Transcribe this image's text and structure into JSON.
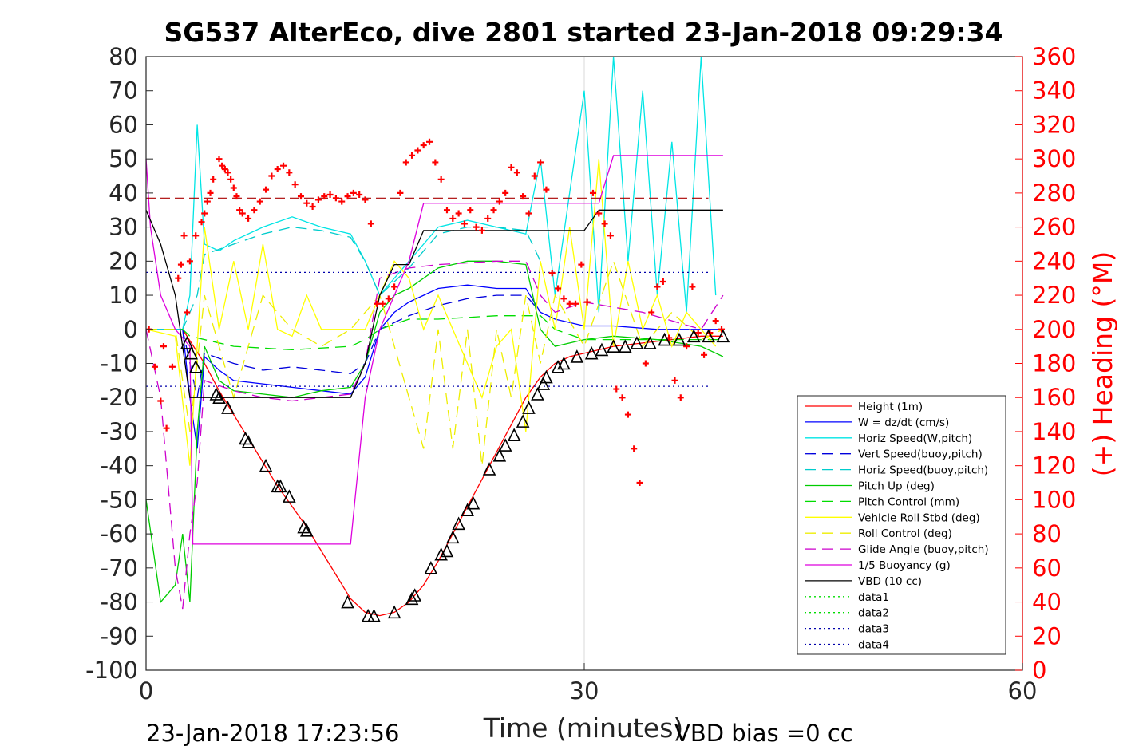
{
  "chart_data": {
    "type": "line",
    "title": "SG537 AlterEco, dive 2801 started 23-Jan-2018 09:29:34",
    "xlabel": "Time (minutes)",
    "ylabel_right": "(+) Heading (°M)",
    "xlim": [
      0,
      60
    ],
    "ylim": [
      -100,
      80
    ],
    "ylim_right": [
      0,
      360
    ],
    "x_ticks": [
      "0",
      "30",
      "60"
    ],
    "y_ticks": [
      "80",
      "70",
      "60",
      "50",
      "40",
      "30",
      "20",
      "10",
      "0",
      "-10",
      "-20",
      "-30",
      "-40",
      "-50",
      "-60",
      "-70",
      "-80",
      "-90",
      "-100"
    ],
    "y_right_ticks": [
      "360",
      "340",
      "320",
      "300",
      "280",
      "260",
      "240",
      "220",
      "200",
      "180",
      "160",
      "140",
      "120",
      "100",
      "80",
      "60",
      "40",
      "20",
      "0"
    ],
    "footer_left": "23-Jan-2018 17:23:56",
    "footer_right": "VBD bias =0 cc",
    "grid": "x-only",
    "legend_position": "bottom-right",
    "colors": {
      "height": "#ff0000",
      "w": "#0000ff",
      "horiz_speed": "#00e5e5",
      "vert_speed_buoy": "#0000dd",
      "horiz_speed_buoy": "#00cccc",
      "pitch_up": "#00cc00",
      "pitch_control": "#00dd00",
      "vehicle_roll": "#ffff00",
      "roll_control": "#eeee00",
      "glide_angle": "#cc00cc",
      "buoyancy": "#dd00dd",
      "vbd": "#000000",
      "heading_markers": "#ff0000",
      "heading_mean": "#aa0000",
      "right_axis": "#ff0000"
    },
    "series": [
      {
        "name": "Height (1m)",
        "style": "solid",
        "color_key": "height",
        "x": [
          0,
          2.5,
          4,
          5,
          6,
          7,
          8,
          9,
          10,
          11,
          12,
          13,
          14,
          15,
          16,
          17,
          18,
          19,
          20,
          21,
          22,
          23,
          24,
          25,
          26,
          27,
          28,
          29,
          30,
          32,
          34,
          36,
          38,
          39.5
        ],
        "y": [
          0,
          0,
          -10,
          -18,
          -25,
          -32,
          -39,
          -46,
          -52,
          -58,
          -65,
          -72,
          -79,
          -83,
          -84,
          -83,
          -80,
          -75,
          -68,
          -60,
          -52,
          -44,
          -36,
          -28,
          -20,
          -14,
          -10,
          -8,
          -7,
          -5,
          -4,
          -3,
          -2,
          -2
        ]
      },
      {
        "name": "W = dz/dt (cm/s)",
        "style": "solid",
        "color_key": "w",
        "x": [
          0,
          2.5,
          3,
          3.5,
          4,
          5,
          6,
          8,
          10,
          12,
          14,
          15,
          16,
          17,
          18,
          19,
          20,
          22,
          24,
          26,
          27,
          28,
          29,
          30,
          32,
          35,
          38,
          39.5
        ],
        "y": [
          0,
          0,
          -20,
          -35,
          -8,
          -12,
          -15,
          -16,
          -17,
          -18,
          -19,
          -14,
          0,
          5,
          8,
          10,
          12,
          13,
          12,
          12,
          5,
          3,
          2,
          1,
          1,
          0,
          0,
          0
        ]
      },
      {
        "name": "Horiz Speed(W,pitch)",
        "style": "solid",
        "color_key": "horiz_speed",
        "x": [
          0,
          2.5,
          3,
          3.5,
          4,
          5,
          6,
          8,
          10,
          12,
          14,
          15,
          16,
          17,
          18,
          19,
          20,
          22,
          24,
          26,
          27,
          28,
          29,
          30,
          31,
          32,
          33,
          34,
          35,
          36,
          37,
          38,
          39
        ],
        "y": [
          0,
          0,
          10,
          60,
          25,
          23,
          26,
          30,
          33,
          30,
          28,
          20,
          10,
          15,
          20,
          25,
          30,
          32,
          30,
          28,
          50,
          10,
          40,
          70,
          5,
          80,
          20,
          70,
          10,
          55,
          5,
          80,
          10
        ]
      },
      {
        "name": "Vert Speed(buoy,pitch)",
        "style": "dash",
        "color_key": "vert_speed_buoy",
        "x": [
          0,
          2.5,
          3.5,
          4,
          6,
          8,
          10,
          12,
          14,
          15,
          16,
          18,
          20,
          22,
          24,
          26,
          27
        ],
        "y": [
          0,
          0,
          -20,
          -7,
          -10,
          -12,
          -11,
          -12,
          -13,
          -10,
          0,
          4,
          7,
          9,
          10,
          10,
          5
        ]
      },
      {
        "name": "Horiz Speed(buoy,pitch)",
        "style": "dash",
        "color_key": "horiz_speed_buoy",
        "x": [
          0,
          2.5,
          3.5,
          4,
          6,
          8,
          10,
          12,
          14,
          15,
          16,
          18,
          20,
          22,
          24,
          26,
          27
        ],
        "y": [
          0,
          0,
          10,
          22,
          25,
          28,
          30,
          29,
          27,
          20,
          10,
          18,
          28,
          30,
          30,
          29,
          20
        ]
      },
      {
        "name": "Pitch Up (deg)",
        "style": "solid",
        "color_key": "pitch_up",
        "x": [
          0,
          1,
          2,
          2.5,
          3,
          3.5,
          4,
          5,
          6,
          8,
          10,
          12,
          14,
          15,
          16,
          17,
          18,
          19,
          20,
          22,
          24,
          26,
          27,
          28,
          30,
          32,
          35,
          38,
          39.5
        ],
        "y": [
          -50,
          -80,
          -75,
          -60,
          -80,
          -30,
          -5,
          -15,
          -18,
          -19,
          -20,
          -18,
          -17,
          -10,
          5,
          10,
          12,
          15,
          18,
          20,
          20,
          19,
          0,
          -5,
          -3,
          -2,
          -3,
          -5,
          -8
        ]
      },
      {
        "name": "Pitch Control (mm)",
        "style": "dash",
        "color_key": "pitch_control",
        "x": [
          0,
          2.5,
          3,
          6,
          10,
          14,
          15,
          16,
          18,
          20,
          24,
          27,
          28,
          30,
          39.5
        ],
        "y": [
          0,
          0,
          -2,
          -5,
          -6,
          -5,
          -3,
          0,
          3,
          3,
          4,
          4,
          0,
          -3,
          -3
        ]
      },
      {
        "name": "Vehicle Roll Stbd (deg)",
        "style": "solid",
        "color_key": "vehicle_roll",
        "x": [
          0,
          2,
          3,
          4,
          5,
          6,
          7,
          8,
          9,
          10,
          11,
          12,
          13,
          14,
          15,
          16,
          17,
          18,
          19,
          20,
          21,
          22,
          23,
          24,
          25,
          26,
          27,
          28,
          29,
          30,
          31,
          32,
          33,
          34,
          35,
          36,
          37,
          38,
          39
        ],
        "y": [
          0,
          -2,
          -40,
          30,
          0,
          20,
          0,
          25,
          0,
          -2,
          10,
          0,
          0,
          0,
          0,
          10,
          20,
          15,
          0,
          10,
          0,
          -10,
          -20,
          -5,
          0,
          -30,
          20,
          0,
          30,
          0,
          50,
          -5,
          20,
          0,
          10,
          -5,
          5,
          0,
          -5
        ]
      },
      {
        "name": "Roll Control (deg)",
        "style": "dash",
        "color_key": "roll_control",
        "x": [
          0,
          2,
          3,
          4,
          6,
          8,
          10,
          12,
          14,
          16,
          18,
          19,
          20,
          21,
          22,
          23,
          24,
          25,
          26,
          27,
          28,
          30,
          32,
          34,
          36,
          38,
          39.5
        ],
        "y": [
          0,
          0,
          -30,
          10,
          -20,
          10,
          0,
          -5,
          0,
          10,
          -20,
          -35,
          0,
          -35,
          0,
          -40,
          0,
          -20,
          10,
          -10,
          10,
          -5,
          20,
          -5,
          5,
          -3,
          0
        ]
      },
      {
        "name": "Glide Angle (buoy,pitch)",
        "style": "dash",
        "color_key": "glide_angle",
        "x": [
          0,
          1,
          2,
          2.5,
          3,
          3.5,
          4,
          6,
          8,
          10,
          12,
          14,
          15,
          16,
          18,
          20,
          24,
          26,
          27,
          28,
          30,
          34,
          38,
          39.5
        ],
        "y": [
          0,
          -20,
          -70,
          -82,
          -60,
          -45,
          -15,
          -18,
          -20,
          -21,
          -20,
          -19,
          -10,
          15,
          18,
          19,
          20,
          20,
          10,
          5,
          8,
          5,
          0,
          10
        ]
      },
      {
        "name": "1/5 Buoyancy (g)",
        "style": "solid",
        "color_key": "buoyancy",
        "x": [
          0,
          0.3,
          1,
          2,
          3,
          3.2,
          4,
          14,
          15,
          16,
          18,
          19,
          20,
          27,
          29,
          31,
          32,
          39.5
        ],
        "y": [
          50,
          30,
          10,
          0,
          -5,
          -63,
          -63,
          -63,
          -20,
          0,
          20,
          37,
          37,
          37,
          37,
          37,
          51,
          51
        ]
      },
      {
        "name": "VBD (10 cc)",
        "style": "solid",
        "color_key": "vbd",
        "x": [
          0,
          1,
          2,
          3,
          14,
          15,
          16,
          17,
          18,
          19,
          28,
          30,
          31,
          32,
          39.5
        ],
        "y": [
          35,
          25,
          10,
          -20,
          -20,
          -10,
          10,
          19,
          19,
          29,
          29,
          29,
          35,
          35,
          35
        ]
      },
      {
        "name": "data1",
        "style": "dot",
        "color": "#00dd00",
        "x": [],
        "y": []
      },
      {
        "name": "data2",
        "style": "dot",
        "color": "#00dd00",
        "x": [],
        "y": []
      },
      {
        "name": "data3",
        "style": "dot",
        "color": "#0000aa",
        "x": [
          0,
          38.5
        ],
        "y": [
          16.7,
          16.7
        ]
      },
      {
        "name": "data4",
        "style": "dot",
        "color": "#0000aa",
        "x": [
          0,
          38.5
        ],
        "y": [
          -16.7,
          -16.7
        ]
      }
    ],
    "heading_mean_line": {
      "x": [
        0,
        38.5
      ],
      "heading": 277
    },
    "heading_points": {
      "x": [
        0.2,
        0.6,
        1.0,
        1.2,
        1.4,
        1.8,
        2.2,
        2.4,
        2.6,
        2.8,
        3.0,
        3.4,
        3.8,
        4.0,
        4.2,
        4.4,
        4.6,
        5.0,
        5.2,
        5.4,
        5.6,
        5.8,
        6.0,
        6.2,
        6.4,
        6.6,
        7.0,
        7.4,
        7.8,
        8.2,
        8.6,
        9.0,
        9.4,
        9.8,
        10.2,
        10.6,
        11.0,
        11.4,
        11.8,
        12.2,
        12.6,
        13.0,
        13.4,
        13.8,
        14.2,
        14.6,
        15.0,
        15.4,
        15.8,
        16.2,
        16.6,
        17.0,
        17.4,
        17.8,
        18.2,
        18.6,
        19.0,
        19.4,
        19.8,
        20.2,
        20.6,
        21.0,
        21.4,
        21.8,
        22.2,
        22.6,
        23.0,
        23.4,
        23.8,
        24.2,
        24.6,
        25.0,
        25.4,
        25.8,
        26.2,
        26.6,
        27.0,
        27.4,
        27.8,
        28.2,
        28.6,
        29.0,
        29.4,
        29.8,
        30.2,
        30.6,
        31.0,
        31.4,
        31.8,
        32.2,
        32.6,
        33.0,
        33.4,
        33.8,
        34.2,
        34.6,
        35.0,
        35.4,
        35.8,
        36.2,
        36.6,
        37.0,
        37.4,
        37.8,
        38.2,
        38.6,
        39.0,
        39.4
      ],
      "heading": [
        200,
        178,
        158,
        190,
        142,
        178,
        230,
        238,
        255,
        210,
        240,
        255,
        263,
        268,
        275,
        280,
        288,
        300,
        296,
        294,
        292,
        288,
        283,
        278,
        270,
        268,
        265,
        270,
        275,
        282,
        290,
        294,
        296,
        292,
        285,
        278,
        274,
        272,
        276,
        278,
        279,
        277,
        275,
        278,
        280,
        279,
        276,
        262,
        215,
        215,
        218,
        225,
        280,
        298,
        302,
        305,
        308,
        310,
        298,
        288,
        270,
        265,
        268,
        262,
        270,
        260,
        258,
        265,
        270,
        275,
        280,
        295,
        292,
        278,
        268,
        290,
        298,
        282,
        233,
        224,
        218,
        215,
        215,
        238,
        216,
        280,
        268,
        262,
        255,
        165,
        160,
        150,
        130,
        110,
        180,
        210,
        225,
        228,
        195,
        170,
        160,
        190,
        225,
        198,
        185,
        198,
        205,
        200
      ]
    },
    "markers": {
      "shape": "triangle",
      "x": [
        2.8,
        3.1,
        3.4,
        4.8,
        5.0,
        5.6,
        6.8,
        7.0,
        8.2,
        9.0,
        9.2,
        9.8,
        10.8,
        11.0,
        13.8,
        15.2,
        15.6,
        17.0,
        18.2,
        18.4,
        19.5,
        20.2,
        20.6,
        21.0,
        21.4,
        22.0,
        22.4,
        23.5,
        24.2,
        24.6,
        25.2,
        25.8,
        26.2,
        26.8,
        27.2,
        27.4,
        28.2,
        28.6,
        29.5,
        30.5,
        31.2,
        32.0,
        32.8,
        33.6,
        34.5,
        35.5,
        36.5,
        37.5,
        38.5,
        39.5
      ],
      "y": [
        -4,
        -7,
        -11,
        -19,
        -20,
        -23,
        -32,
        -33,
        -40,
        -46,
        -46,
        -49,
        -58,
        -59,
        -80,
        -84,
        -84,
        -83,
        -79,
        -78,
        -70,
        -66,
        -65,
        -61,
        -57,
        -53,
        -51,
        -41,
        -37,
        -34,
        -31,
        -27,
        -23,
        -19,
        -16,
        -14,
        -11,
        -10,
        -8,
        -7,
        -6,
        -5,
        -5,
        -4,
        -4,
        -3,
        -3,
        -2,
        -2,
        -2
      ]
    }
  },
  "legend": {
    "entries": [
      "Height (1m)",
      "W = dz/dt (cm/s)",
      "Horiz Speed(W,pitch)",
      "Vert Speed(buoy,pitch)",
      "Horiz Speed(buoy,pitch)",
      "Pitch Up (deg)",
      "Pitch Control (mm)",
      "Vehicle Roll Stbd (deg)",
      "Roll Control (deg)",
      "Glide Angle (buoy,pitch)",
      "1/5 Buoyancy (g)",
      "VBD (10 cc)",
      "data1",
      "data2",
      "data3",
      "data4"
    ]
  }
}
